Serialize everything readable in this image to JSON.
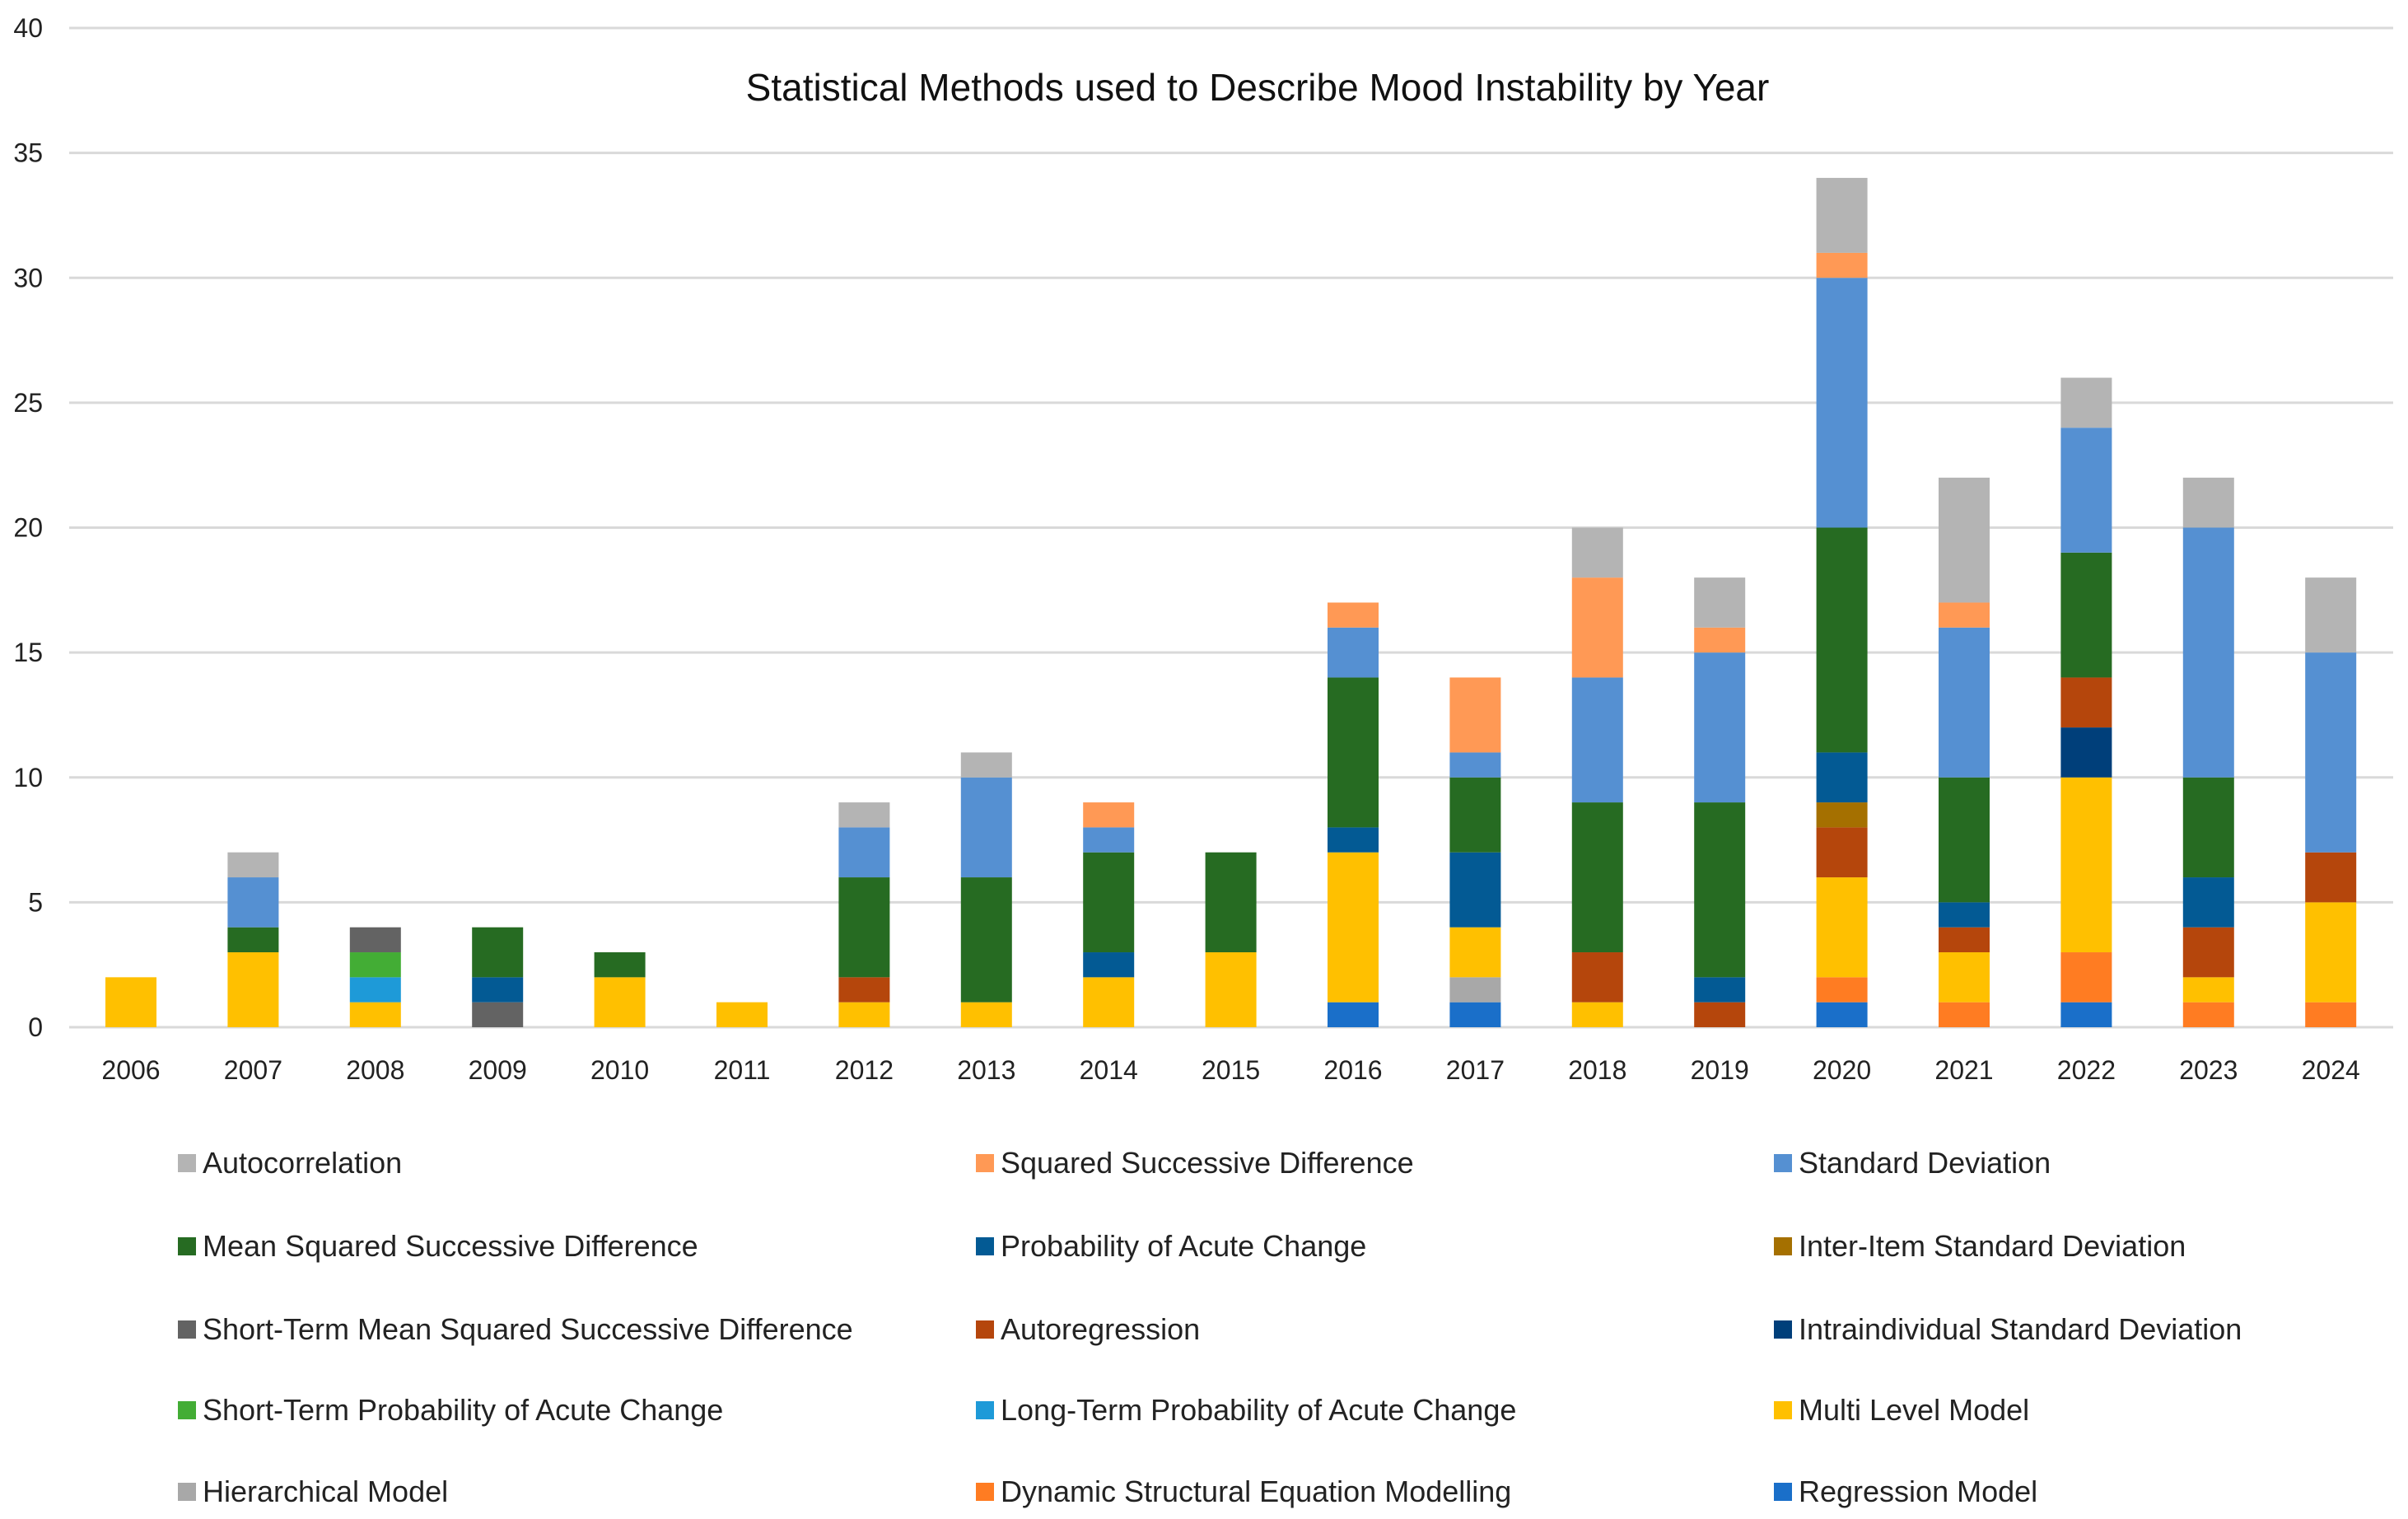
{
  "chart_data": {
    "type": "bar",
    "stacked": true,
    "title": "Statistical Methods used to Describe Mood Instability by Year",
    "xlabel": "",
    "ylabel": "",
    "ylim": [
      0,
      40
    ],
    "yticks": [
      0,
      5,
      10,
      15,
      20,
      25,
      30,
      35,
      40
    ],
    "grid": true,
    "legend_position": "bottom",
    "categories": [
      "2006",
      "2007",
      "2008",
      "2009",
      "2010",
      "2011",
      "2012",
      "2013",
      "2014",
      "2015",
      "2016",
      "2017",
      "2018",
      "2019",
      "2020",
      "2021",
      "2022",
      "2023",
      "2024"
    ],
    "series": [
      {
        "name": "Autocorrelation",
        "color": "#b4b4b4"
      },
      {
        "name": "Squared Successive Difference",
        "color": "#ff9955"
      },
      {
        "name": "Standard Deviation",
        "color": "#5590d2"
      },
      {
        "name": "Mean Squared Successive Difference",
        "color": "#266b22"
      },
      {
        "name": "Probability of Acute Change",
        "color": "#035a94"
      },
      {
        "name": "Inter-Item Standard Deviation",
        "color": "#a57000"
      },
      {
        "name": "Short-Term Mean Squared Successive Difference",
        "color": "#636363"
      },
      {
        "name": "Autoregression",
        "color": "#b5460c"
      },
      {
        "name": "Intraindividual Standard Deviation",
        "color": "#003f7a"
      },
      {
        "name": "Short-Term Probability of Acute Change",
        "color": "#43ad35"
      },
      {
        "name": "Long-Term Probability of Acute Change",
        "color": "#1e9ad8"
      },
      {
        "name": "Multi Level Model",
        "color": "#ffc000"
      },
      {
        "name": "Hierarchical Model",
        "color": "#a8a8a8"
      },
      {
        "name": "Dynamic Structural Equation Modelling",
        "color": "#ff7c22"
      },
      {
        "name": "Regression Model",
        "color": "#1a6fc9"
      }
    ],
    "stacks": [
      {
        "year": "2006",
        "segments": [
          [
            "Multi Level Model",
            2
          ]
        ]
      },
      {
        "year": "2007",
        "segments": [
          [
            "Multi Level Model",
            3
          ],
          [
            "Mean Squared Successive Difference",
            1
          ],
          [
            "Standard Deviation",
            2
          ],
          [
            "Autocorrelation",
            1
          ]
        ]
      },
      {
        "year": "2008",
        "segments": [
          [
            "Multi Level Model",
            1
          ],
          [
            "Long-Term Probability of Acute Change",
            1
          ],
          [
            "Short-Term Probability of Acute Change",
            1
          ],
          [
            "Short-Term Mean Squared Successive Difference",
            1
          ]
        ]
      },
      {
        "year": "2009",
        "segments": [
          [
            "Short-Term Mean Squared Successive Difference",
            1
          ],
          [
            "Probability of Acute Change",
            1
          ],
          [
            "Mean Squared Successive Difference",
            2
          ]
        ]
      },
      {
        "year": "2010",
        "segments": [
          [
            "Multi Level Model",
            2
          ],
          [
            "Mean Squared Successive Difference",
            1
          ]
        ]
      },
      {
        "year": "2011",
        "segments": [
          [
            "Multi Level Model",
            1
          ]
        ]
      },
      {
        "year": "2012",
        "segments": [
          [
            "Multi Level Model",
            1
          ],
          [
            "Autoregression",
            1
          ],
          [
            "Mean Squared Successive Difference",
            4
          ],
          [
            "Standard Deviation",
            2
          ],
          [
            "Autocorrelation",
            1
          ]
        ]
      },
      {
        "year": "2013",
        "segments": [
          [
            "Multi Level Model",
            1
          ],
          [
            "Mean Squared Successive Difference",
            5
          ],
          [
            "Standard Deviation",
            4
          ],
          [
            "Autocorrelation",
            1
          ]
        ]
      },
      {
        "year": "2014",
        "segments": [
          [
            "Multi Level Model",
            2
          ],
          [
            "Probability of Acute Change",
            1
          ],
          [
            "Mean Squared Successive Difference",
            4
          ],
          [
            "Standard Deviation",
            1
          ],
          [
            "Squared Successive Difference",
            1
          ]
        ]
      },
      {
        "year": "2015",
        "segments": [
          [
            "Multi Level Model",
            3
          ],
          [
            "Mean Squared Successive Difference",
            4
          ]
        ]
      },
      {
        "year": "2016",
        "segments": [
          [
            "Regression Model",
            1
          ],
          [
            "Multi Level Model",
            6
          ],
          [
            "Probability of Acute Change",
            1
          ],
          [
            "Mean Squared Successive Difference",
            6
          ],
          [
            "Standard Deviation",
            2
          ],
          [
            "Squared Successive Difference",
            1
          ]
        ]
      },
      {
        "year": "2017",
        "segments": [
          [
            "Regression Model",
            1
          ],
          [
            "Hierarchical Model",
            1
          ],
          [
            "Multi Level Model",
            2
          ],
          [
            "Probability of Acute Change",
            3
          ],
          [
            "Mean Squared Successive Difference",
            3
          ],
          [
            "Standard Deviation",
            1
          ],
          [
            "Squared Successive Difference",
            3
          ]
        ]
      },
      {
        "year": "2018",
        "segments": [
          [
            "Multi Level Model",
            1
          ],
          [
            "Autoregression",
            2
          ],
          [
            "Mean Squared Successive Difference",
            6
          ],
          [
            "Standard Deviation",
            5
          ],
          [
            "Squared Successive Difference",
            4
          ],
          [
            "Autocorrelation",
            2
          ]
        ]
      },
      {
        "year": "2019",
        "segments": [
          [
            "Autoregression",
            1
          ],
          [
            "Probability of Acute Change",
            1
          ],
          [
            "Mean Squared Successive Difference",
            7
          ],
          [
            "Standard Deviation",
            6
          ],
          [
            "Squared Successive Difference",
            1
          ],
          [
            "Autocorrelation",
            2
          ]
        ]
      },
      {
        "year": "2020",
        "segments": [
          [
            "Regression Model",
            1
          ],
          [
            "Dynamic Structural Equation Modelling",
            1
          ],
          [
            "Multi Level Model",
            4
          ],
          [
            "Autoregression",
            2
          ],
          [
            "Inter-Item Standard Deviation",
            1
          ],
          [
            "Probability of Acute Change",
            2
          ],
          [
            "Mean Squared Successive Difference",
            9
          ],
          [
            "Standard Deviation",
            10
          ],
          [
            "Squared Successive Difference",
            1
          ],
          [
            "Autocorrelation",
            3
          ]
        ]
      },
      {
        "year": "2021",
        "segments": [
          [
            "Dynamic Structural Equation Modelling",
            1
          ],
          [
            "Multi Level Model",
            2
          ],
          [
            "Autoregression",
            1
          ],
          [
            "Probability of Acute Change",
            1
          ],
          [
            "Mean Squared Successive Difference",
            5
          ],
          [
            "Standard Deviation",
            6
          ],
          [
            "Squared Successive Difference",
            1
          ],
          [
            "Autocorrelation",
            5
          ]
        ]
      },
      {
        "year": "2022",
        "segments": [
          [
            "Regression Model",
            1
          ],
          [
            "Dynamic Structural Equation Modelling",
            2
          ],
          [
            "Multi Level Model",
            7
          ],
          [
            "Intraindividual Standard Deviation",
            2
          ],
          [
            "Autoregression",
            2
          ],
          [
            "Mean Squared Successive Difference",
            5
          ],
          [
            "Standard Deviation",
            5
          ],
          [
            "Autocorrelation",
            2
          ]
        ]
      },
      {
        "year": "2023",
        "segments": [
          [
            "Dynamic Structural Equation Modelling",
            1
          ],
          [
            "Multi Level Model",
            1
          ],
          [
            "Autoregression",
            2
          ],
          [
            "Probability of Acute Change",
            2
          ],
          [
            "Mean Squared Successive Difference",
            4
          ],
          [
            "Standard Deviation",
            10
          ],
          [
            "Autocorrelation",
            2
          ]
        ]
      },
      {
        "year": "2024",
        "segments": [
          [
            "Dynamic Structural Equation Modelling",
            1
          ],
          [
            "Multi Level Model",
            4
          ],
          [
            "Autoregression",
            2
          ],
          [
            "Standard Deviation",
            8
          ],
          [
            "Autocorrelation",
            3
          ]
        ]
      }
    ]
  }
}
